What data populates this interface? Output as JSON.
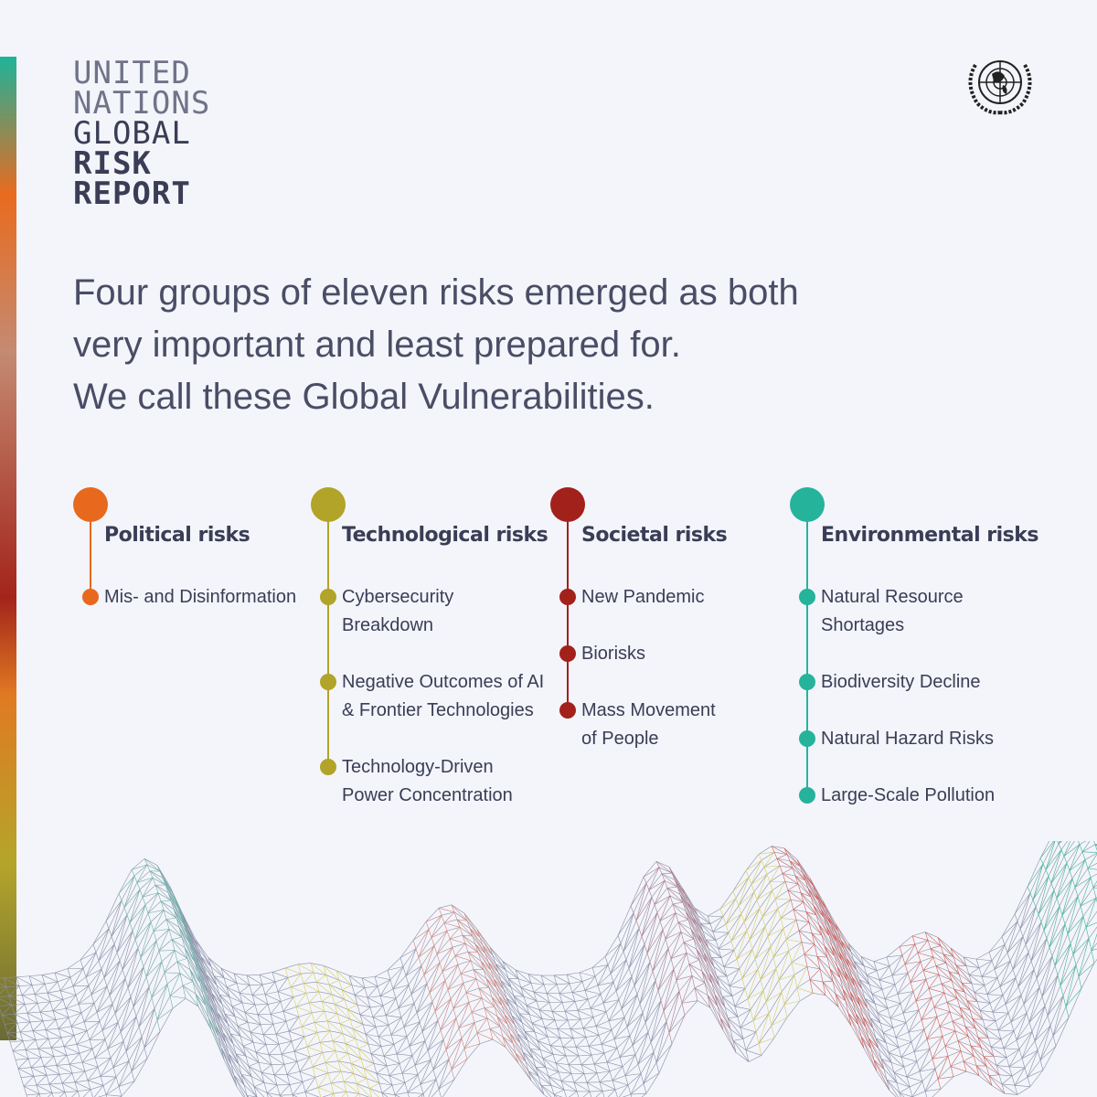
{
  "header": {
    "lines": [
      "UNITED",
      "NATIONS",
      "GLOBAL",
      "RISK",
      "REPORT"
    ]
  },
  "headline": {
    "lines": [
      "Four groups of eleven risks emerged as both",
      "very important and least prepared for.",
      "We call these Global Vulnerabilities."
    ]
  },
  "groups": [
    {
      "title": "Political risks",
      "items": [
        [
          "Mis- and Disinformation"
        ]
      ]
    },
    {
      "title": "Technological risks",
      "items": [
        [
          "Cybersecurity",
          "Breakdown"
        ],
        [
          "Negative Outcomes of AI",
          "& Frontier Technologies"
        ],
        [
          "Technology-Driven",
          "Power Concentration"
        ]
      ]
    },
    {
      "title": "Societal risks",
      "items": [
        [
          "New Pandemic"
        ],
        [
          "Biorisks"
        ],
        [
          "Mass Movement",
          "of People"
        ]
      ]
    },
    {
      "title": "Environmental risks",
      "items": [
        [
          "Natural Resource",
          "Shortages"
        ],
        [
          "Biodiversity Decline"
        ],
        [
          "Natural Hazard Risks"
        ],
        [
          "Large-Scale Pollution"
        ]
      ]
    }
  ]
}
